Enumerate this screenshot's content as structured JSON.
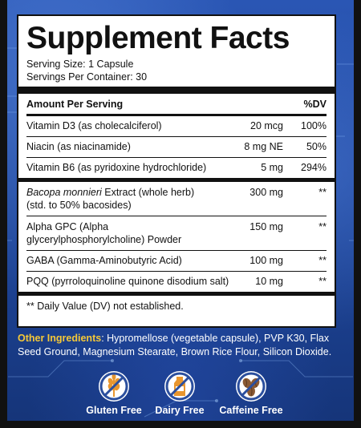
{
  "panel": {
    "title": "Supplement Facts",
    "serving_size": "Serving Size: 1 Capsule",
    "servings_per_container": "Servings Per Container: 30",
    "header": {
      "amount": "Amount Per Serving",
      "dv": "%DV"
    },
    "rows": [
      {
        "name": "Vitamin D3 (as cholecalciferol)",
        "amount": "20 mcg",
        "dv": "100%"
      },
      {
        "name": "Niacin (as niacinamide)",
        "amount": "8 mg NE",
        "dv": "50%"
      },
      {
        "name": "Vitamin B6 (as pyridoxine hydrochloride)",
        "amount": "5 mg",
        "dv": "294%"
      },
      {
        "name_italic": "Bacopa monnieri",
        "name_rest": " Extract (whole herb)",
        "name_line2": "(std. to 50% bacosides)",
        "amount": "300 mg",
        "dv": "**"
      },
      {
        "name": "Alpha GPC (Alpha",
        "name_line2": "glycerylphosphorylcholine) Powder",
        "amount": "150 mg",
        "dv": "**"
      },
      {
        "name": "GABA (Gamma-Aminobutyric Acid)",
        "amount": "100 mg",
        "dv": "**"
      },
      {
        "name": "PQQ (pyrroloquinoline quinone disodium salt)",
        "amount": "10 mg",
        "dv": "**"
      }
    ],
    "footnote": "** Daily Value (DV) not established."
  },
  "other_ingredients": {
    "label": "Other Ingredients",
    "text": ": Hypromellose (vegetable capsule), PVP K30, Flax Seed Ground, Magnesium Stearate, Brown Rice Flour, Silicon Dioxide."
  },
  "badges": [
    {
      "label": "Gluten Free",
      "icon": "wheat-icon"
    },
    {
      "label": "Dairy Free",
      "icon": "milk-bottle-icon"
    },
    {
      "label": "Caffeine Free",
      "icon": "coffee-beans-icon"
    }
  ],
  "colors": {
    "background": "#1e4599",
    "accent_label": "#f5c838",
    "badge_orange": "#e8962e",
    "prohibit_blue": "#2b4f9e"
  }
}
